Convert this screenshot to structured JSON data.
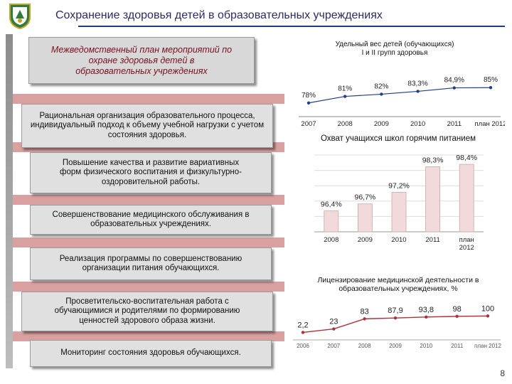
{
  "title": "Сохранение здоровья детей в образовательных учреждениях",
  "plan_box": "Межведомственный план мероприятий по охране здоровья детей в образовательных учреждениях",
  "measures": [
    "Рациональная организация образовательного процесса, индивидуальный подход к объему учебной нагрузки с учетом состояния здоровья.",
    "Повышение качества и развитие вариативных форм физического воспитания и физкультурно-оздоровительной работы.",
    "Совершенствование медицинского обслуживания в образовательных учреждениях.",
    "Реализация программы по совершенствованию организации питания обучающихся.",
    "Просветительско-воспитательная работа с обучающимися и родителями по формированию ценностей здорового образа жизни.",
    "Мониторинг состояния здоровья обучающихся."
  ],
  "page_number": "8",
  "colors": {
    "title": "#2a2a6a",
    "plan_text": "#7a1020",
    "line1": "#1f3f8a",
    "bars": "#f2dada",
    "line3": "#b0303a"
  },
  "chart_data": [
    {
      "type": "line",
      "title": "Удельный вес детей (обучающихся) I и II групп здоровья",
      "categories": [
        "2007",
        "2008",
        "2009",
        "2010",
        "2011",
        "план 2012"
      ],
      "values": [
        78,
        81,
        82,
        83.3,
        84.9,
        85
      ],
      "labels": [
        "78%",
        "81%",
        "82%",
        "83,3%",
        "84,9%",
        "85%"
      ],
      "ylim": [
        75,
        88
      ],
      "grid": false
    },
    {
      "type": "bar",
      "title": "Охват учащихся школ горячим питанием",
      "categories": [
        "2008",
        "2009",
        "2010",
        "2011",
        "план 2012"
      ],
      "values": [
        96.4,
        96.7,
        97.2,
        98.3,
        98.4
      ],
      "labels": [
        "96,4%",
        "96,7%",
        "97,2%",
        "98,3%",
        "98,4%"
      ],
      "ylim": [
        95.5,
        98.8
      ],
      "grid": true
    },
    {
      "type": "line",
      "title": "Лицензирование медицинской деятельности в образовательных учреждениях, %",
      "categories": [
        "2006",
        "2007",
        "2008",
        "2009",
        "2010",
        "2011",
        "план 2012"
      ],
      "values": [
        2.2,
        23,
        83,
        87.9,
        93.8,
        98,
        100
      ],
      "labels": [
        "2,2",
        "23",
        "83",
        "87,9",
        "93,8",
        "98",
        "100"
      ],
      "ylim": [
        0,
        110
      ],
      "grid": false
    }
  ]
}
